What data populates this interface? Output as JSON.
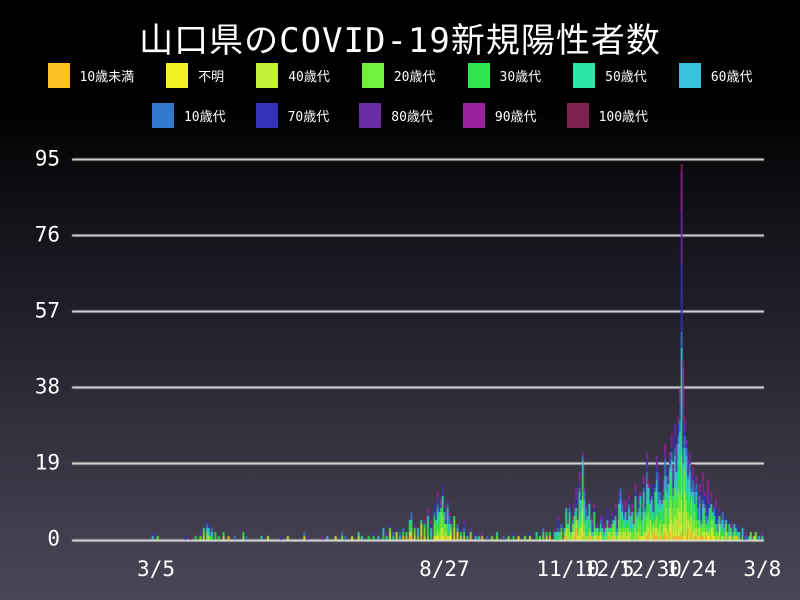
{
  "title": "山口県のCOVID-19新規陽性者数",
  "legend": {
    "rows": [
      7,
      5
    ],
    "items": [
      {
        "label": "10歳未満",
        "color": "#fdc028"
      },
      {
        "label": "不明",
        "color": "#f2f126"
      },
      {
        "label": "40歳代",
        "color": "#c4f03a"
      },
      {
        "label": "20歳代",
        "color": "#70f13c"
      },
      {
        "label": "30歳代",
        "color": "#2ee64e"
      },
      {
        "label": "50歳代",
        "color": "#2ce3a3"
      },
      {
        "label": "60歳代",
        "color": "#38c3dc"
      },
      {
        "label": "10歳代",
        "color": "#3478cd"
      },
      {
        "label": "70歳代",
        "color": "#3332b4"
      },
      {
        "label": "80歳代",
        "color": "#6c2ba6"
      },
      {
        "label": "90歳代",
        "color": "#9c219e"
      },
      {
        "label": "100歳代",
        "color": "#7c2150"
      }
    ]
  },
  "chart_data": {
    "type": "bar",
    "stacked": true,
    "title": "山口県のCOVID-19新規陽性者数",
    "xlabel": "",
    "ylabel": "",
    "ylim": [
      0,
      95
    ],
    "yticks": [
      0,
      19,
      38,
      57,
      76,
      95
    ],
    "grid": "horizontal",
    "grid_color": "#e8e8e8",
    "text_color": "#ffffff",
    "legend_position": "top",
    "x_unit": "day",
    "day_zero": "2020-01-14",
    "axis_days": 420,
    "xticks": [
      {
        "label": "3/5",
        "day": 51
      },
      {
        "label": "8/27",
        "day": 226
      },
      {
        "label": "11/10",
        "day": 301
      },
      {
        "label": "12/5",
        "day": 326
      },
      {
        "label": "12/30",
        "day": 351
      },
      {
        "label": "1/24",
        "day": 376
      },
      {
        "label": "3/8",
        "day": 419
      }
    ],
    "series_stack_order": [
      "10歳未満",
      "不明",
      "40歳代",
      "20歳代",
      "30歳代",
      "50歳代",
      "60歳代",
      "10歳代",
      "70歳代",
      "80歳代",
      "90歳代",
      "100歳代"
    ],
    "age_share_profiles": {
      "default": [
        0.05,
        0.02,
        0.12,
        0.16,
        0.13,
        0.12,
        0.11,
        0.08,
        0.09,
        0.07,
        0.04,
        0.01
      ],
      "elderly_cluster": [
        0.02,
        0.02,
        0.08,
        0.08,
        0.08,
        0.1,
        0.12,
        0.03,
        0.17,
        0.14,
        0.13,
        0.03
      ]
    },
    "peak": {
      "day": 370,
      "value": 94
    },
    "days": [
      [
        49,
        2
      ],
      [
        52,
        1
      ],
      [
        69,
        1
      ],
      [
        72,
        1
      ],
      [
        75,
        1
      ],
      [
        78,
        2
      ],
      [
        80,
        3
      ],
      [
        82,
        5
      ],
      [
        83,
        4
      ],
      [
        84,
        2
      ],
      [
        85,
        3
      ],
      [
        87,
        2
      ],
      [
        89,
        1
      ],
      [
        92,
        2
      ],
      [
        95,
        1
      ],
      [
        99,
        1
      ],
      [
        104,
        2
      ],
      [
        106,
        1
      ],
      [
        115,
        1
      ],
      [
        119,
        1
      ],
      [
        127,
        1
      ],
      [
        131,
        1
      ],
      [
        141,
        2
      ],
      [
        143,
        1
      ],
      [
        152,
        1
      ],
      [
        155,
        1
      ],
      [
        160,
        1
      ],
      [
        164,
        2
      ],
      [
        166,
        1
      ],
      [
        170,
        1
      ],
      [
        174,
        2
      ],
      [
        176,
        1
      ],
      [
        180,
        1
      ],
      [
        183,
        2
      ],
      [
        186,
        1
      ],
      [
        189,
        3
      ],
      [
        191,
        2
      ],
      [
        193,
        4
      ],
      [
        195,
        2
      ],
      [
        197,
        3
      ],
      [
        199,
        2
      ],
      [
        201,
        3
      ],
      [
        203,
        2
      ],
      [
        205,
        5
      ],
      [
        206,
        7
      ],
      [
        208,
        4
      ],
      [
        210,
        3
      ],
      [
        212,
        5
      ],
      [
        214,
        6
      ],
      [
        216,
        8
      ],
      [
        218,
        5
      ],
      [
        220,
        9
      ],
      [
        221,
        7
      ],
      [
        222,
        12
      ],
      [
        223,
        8
      ],
      [
        224,
        10
      ],
      [
        225,
        14
      ],
      [
        226,
        9
      ],
      [
        227,
        6
      ],
      [
        228,
        10
      ],
      [
        229,
        7
      ],
      [
        230,
        5
      ],
      [
        232,
        6
      ],
      [
        234,
        4
      ],
      [
        236,
        3
      ],
      [
        238,
        5
      ],
      [
        240,
        2
      ],
      [
        242,
        3
      ],
      [
        245,
        2
      ],
      [
        247,
        1
      ],
      [
        249,
        2
      ],
      [
        252,
        1
      ],
      [
        255,
        1
      ],
      [
        258,
        2
      ],
      [
        262,
        1
      ],
      [
        265,
        1
      ],
      [
        268,
        2
      ],
      [
        271,
        1
      ],
      [
        275,
        1
      ],
      [
        278,
        2
      ],
      [
        282,
        2
      ],
      [
        284,
        1
      ],
      [
        286,
        3
      ],
      [
        288,
        2
      ],
      [
        290,
        2
      ],
      [
        293,
        3
      ],
      [
        294,
        2
      ],
      [
        295,
        6
      ],
      [
        296,
        2
      ],
      [
        297,
        4
      ],
      [
        299,
        3
      ],
      [
        300,
        8
      ],
      [
        301,
        5
      ],
      [
        302,
        9
      ],
      [
        303,
        4
      ],
      [
        304,
        6
      ],
      [
        305,
        9
      ],
      [
        306,
        13
      ],
      [
        307,
        8
      ],
      [
        308,
        17
      ],
      [
        309,
        11
      ],
      [
        310,
        22
      ],
      [
        311,
        13
      ],
      [
        312,
        9
      ],
      [
        313,
        7
      ],
      [
        314,
        10
      ],
      [
        315,
        6
      ],
      [
        316,
        5
      ],
      [
        317,
        9
      ],
      [
        318,
        3
      ],
      [
        319,
        4
      ],
      [
        320,
        3
      ],
      [
        321,
        6
      ],
      [
        322,
        6
      ],
      [
        323,
        4
      ],
      [
        324,
        3
      ],
      [
        325,
        8
      ],
      [
        326,
        5
      ],
      [
        327,
        4
      ],
      [
        328,
        7
      ],
      [
        329,
        5
      ],
      [
        330,
        9
      ],
      [
        331,
        6
      ],
      [
        332,
        12
      ],
      [
        333,
        13
      ],
      [
        334,
        10
      ],
      [
        335,
        8
      ],
      [
        336,
        10
      ],
      [
        337,
        6
      ],
      [
        338,
        12
      ],
      [
        339,
        7
      ],
      [
        340,
        9
      ],
      [
        341,
        5
      ],
      [
        342,
        14
      ],
      [
        343,
        7
      ],
      [
        344,
        11
      ],
      [
        345,
        12
      ],
      [
        346,
        9
      ],
      [
        347,
        16
      ],
      [
        348,
        10
      ],
      [
        349,
        22
      ],
      [
        350,
        15
      ],
      [
        351,
        11
      ],
      [
        352,
        14
      ],
      [
        353,
        9
      ],
      [
        354,
        14
      ],
      [
        355,
        21
      ],
      [
        356,
        17
      ],
      [
        357,
        12
      ],
      [
        358,
        10
      ],
      [
        359,
        15
      ],
      [
        360,
        24
      ],
      [
        361,
        18
      ],
      [
        362,
        16
      ],
      [
        363,
        22
      ],
      [
        364,
        27
      ],
      [
        365,
        19
      ],
      [
        366,
        29
      ],
      [
        367,
        24
      ],
      [
        368,
        31
      ],
      [
        369,
        38
      ],
      [
        370,
        94,
        1
      ],
      [
        371,
        45,
        1
      ],
      [
        372,
        31
      ],
      [
        373,
        25
      ],
      [
        374,
        20
      ],
      [
        375,
        22
      ],
      [
        376,
        17
      ],
      [
        377,
        19
      ],
      [
        378,
        13
      ],
      [
        379,
        16
      ],
      [
        380,
        11
      ],
      [
        381,
        14
      ],
      [
        382,
        9
      ],
      [
        383,
        17,
        1
      ],
      [
        384,
        12
      ],
      [
        385,
        8
      ],
      [
        386,
        15,
        1
      ],
      [
        387,
        10
      ],
      [
        388,
        12
      ],
      [
        389,
        7
      ],
      [
        390,
        9
      ],
      [
        391,
        11,
        1
      ],
      [
        392,
        6
      ],
      [
        393,
        8
      ],
      [
        394,
        5
      ],
      [
        395,
        7
      ],
      [
        396,
        4
      ],
      [
        397,
        6
      ],
      [
        398,
        3
      ],
      [
        399,
        5
      ],
      [
        400,
        4
      ],
      [
        401,
        2
      ],
      [
        402,
        4
      ],
      [
        403,
        3
      ],
      [
        404,
        4
      ],
      [
        405,
        2
      ],
      [
        407,
        3
      ],
      [
        408,
        1
      ],
      [
        409,
        2
      ],
      [
        411,
        1
      ],
      [
        412,
        2
      ],
      [
        414,
        1
      ],
      [
        415,
        2
      ],
      [
        417,
        1
      ],
      [
        419,
        2
      ]
    ]
  }
}
